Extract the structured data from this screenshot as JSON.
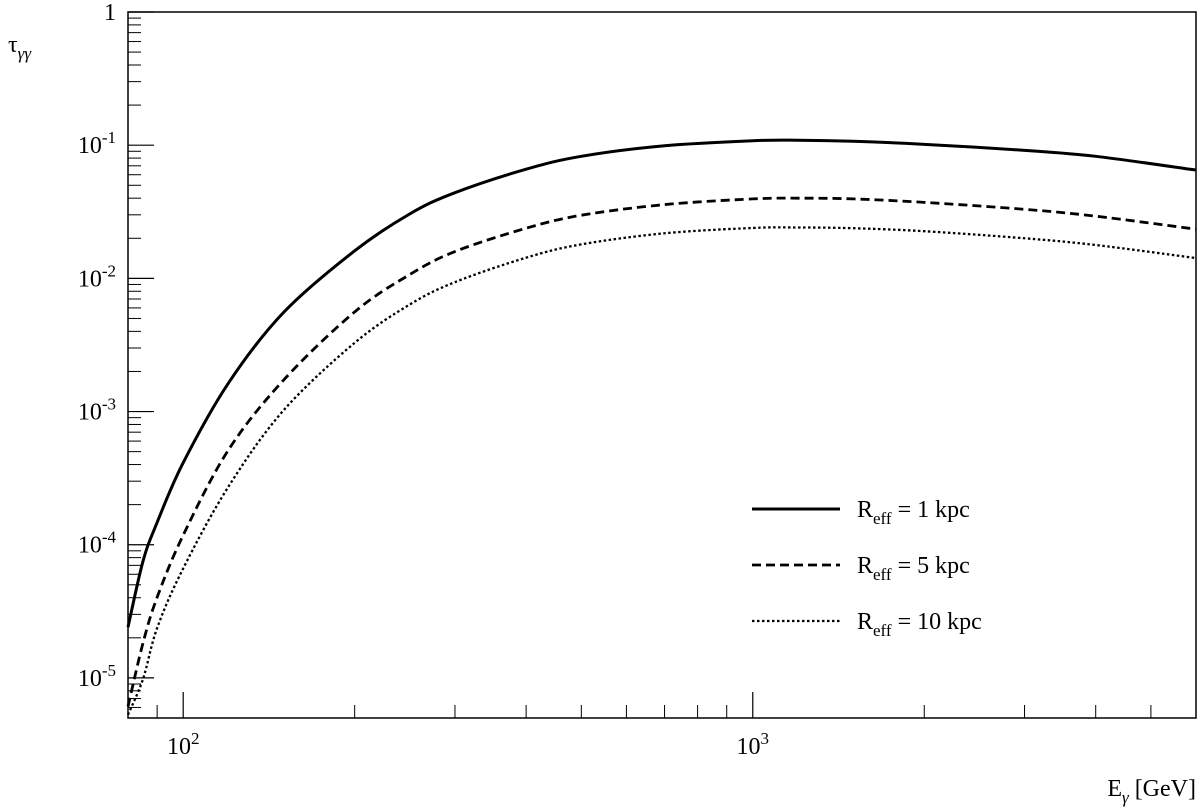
{
  "chart_data": {
    "type": "line",
    "title": "",
    "xlabel": {
      "main": "E",
      "sub": "γ",
      "rest": " [GeV]"
    },
    "ylabel": {
      "main": "τ",
      "sub": "γγ"
    },
    "xscale": "log",
    "yscale": "log",
    "xlim": [
      80,
      6000
    ],
    "ylim": [
      5e-06,
      1
    ],
    "grid": false,
    "legend_position": "bottom-right",
    "xticks": [
      {
        "value": 100,
        "base": "10",
        "exp": "2"
      },
      {
        "value": 1000,
        "base": "10",
        "exp": "3"
      }
    ],
    "yticks": [
      {
        "value": 1,
        "base": "1",
        "exp": ""
      },
      {
        "value": 0.1,
        "base": "10",
        "exp": "-1"
      },
      {
        "value": 0.01,
        "base": "10",
        "exp": "-2"
      },
      {
        "value": 0.001,
        "base": "10",
        "exp": "-3"
      },
      {
        "value": 0.0001,
        "base": "10",
        "exp": "-4"
      },
      {
        "value": 1e-05,
        "base": "10",
        "exp": "-5"
      }
    ],
    "series": [
      {
        "name": {
          "main": "R",
          "sub": "eff",
          "rest": " = 1 kpc"
        },
        "style": "solid",
        "x": [
          80,
          85,
          90,
          100,
          120,
          150,
          200,
          250,
          300,
          400,
          500,
          700,
          1000,
          1200,
          1500,
          2000,
          3000,
          4000,
          6000
        ],
        "y": [
          2.4e-05,
          7.52e-05,
          0.000147,
          0.000413,
          0.00163,
          0.00554,
          0.0161,
          0.0305,
          0.044,
          0.066,
          0.0825,
          0.099,
          0.108,
          0.109,
          0.107,
          0.1015,
          0.0915,
          0.0825,
          0.065
        ]
      },
      {
        "name": {
          "main": "R",
          "sub": "eff",
          "rest": " = 5 kpc"
        },
        "style": "dashed",
        "x": [
          80,
          85,
          90,
          100,
          120,
          150,
          200,
          250,
          300,
          400,
          500,
          700,
          1000,
          1200,
          1500,
          2000,
          3000,
          4000,
          6000
        ],
        "y": [
          6.1e-06,
          1.83e-05,
          4.03e-05,
          0.000118,
          0.000513,
          0.00172,
          0.0056,
          0.0107,
          0.0159,
          0.0238,
          0.0298,
          0.0358,
          0.0395,
          0.04,
          0.0395,
          0.0372,
          0.033,
          0.0293,
          0.0234
        ]
      },
      {
        "name": {
          "main": "R",
          "sub": "eff",
          "rest": " = 10 kpc"
        },
        "style": "dotted",
        "x": [
          80,
          85,
          90,
          100,
          120,
          150,
          200,
          250,
          300,
          400,
          500,
          700,
          1000,
          1200,
          1500,
          2000,
          3000,
          4000,
          6000
        ],
        "y": [
          5.3e-06,
          9.8e-06,
          2.37e-05,
          6.64e-05,
          0.000272,
          0.00102,
          0.00328,
          0.00637,
          0.00937,
          0.0143,
          0.018,
          0.0218,
          0.0239,
          0.0241,
          0.0238,
          0.0226,
          0.02,
          0.0178,
          0.0142
        ]
      }
    ]
  }
}
